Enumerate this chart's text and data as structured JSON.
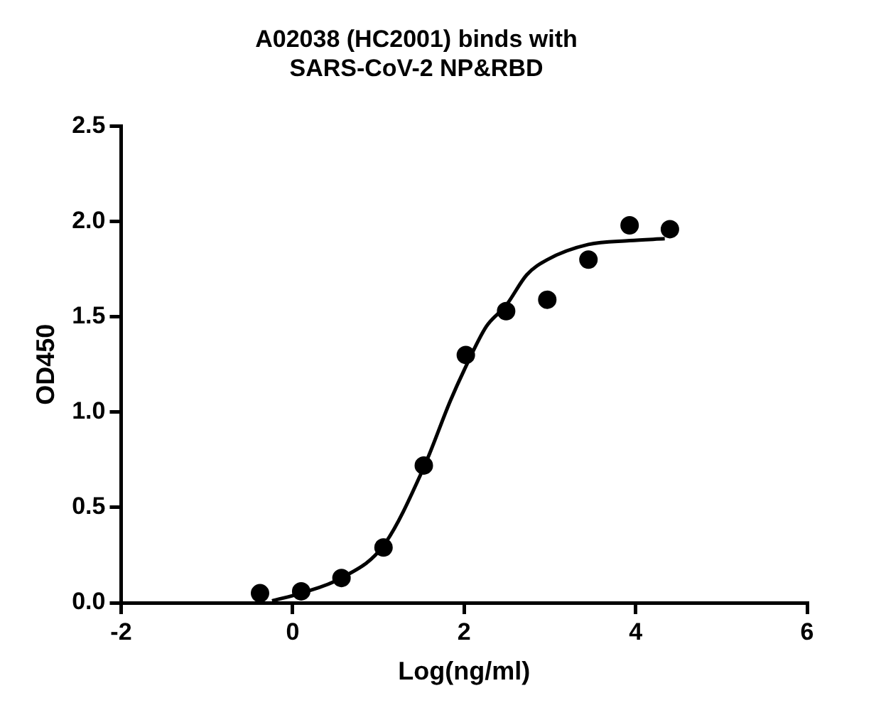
{
  "chart_data": {
    "type": "scatter",
    "title": "A02038 (HC2001) binds with\nSARS-CoV-2 NP&RBD",
    "xlabel": "Log(ng/ml)",
    "ylabel": "OD450",
    "xlim": [
      -2,
      6
    ],
    "xticks": [
      -2,
      0,
      2,
      4,
      6
    ],
    "ylim": [
      0,
      2.5
    ],
    "yticks": [
      {
        "value": 0,
        "label": "0.0"
      },
      0.5,
      {
        "value": 1,
        "label": "1.0"
      },
      1.5,
      {
        "value": 2,
        "label": "2.0"
      },
      2.5
    ],
    "grid": false,
    "legend": false,
    "marker": "circle",
    "series": [
      {
        "color": "#000000",
        "x": [
          -0.38,
          0.1,
          0.57,
          1.06,
          1.53,
          2.02,
          2.49,
          2.97,
          3.45,
          3.93,
          4.4
        ],
        "values": [
          0.05,
          0.06,
          0.13,
          0.29,
          0.72,
          1.3,
          1.53,
          1.59,
          1.8,
          1.98,
          1.96
        ]
      },
      {
        "type": "line",
        "color": "#000000",
        "line_style": "solid",
        "marker": "none",
        "x": [
          -0.24,
          0.1,
          0.57,
          1.06,
          1.53,
          1.84,
          2.0,
          2.26,
          2.49,
          2.73,
          2.97,
          3.45,
          3.93,
          4.34
        ],
        "values": [
          0.01,
          0.05,
          0.13,
          0.3,
          0.71,
          1.06,
          1.22,
          1.45,
          1.56,
          1.72,
          1.8,
          1.88,
          1.9,
          1.91
        ]
      }
    ]
  }
}
